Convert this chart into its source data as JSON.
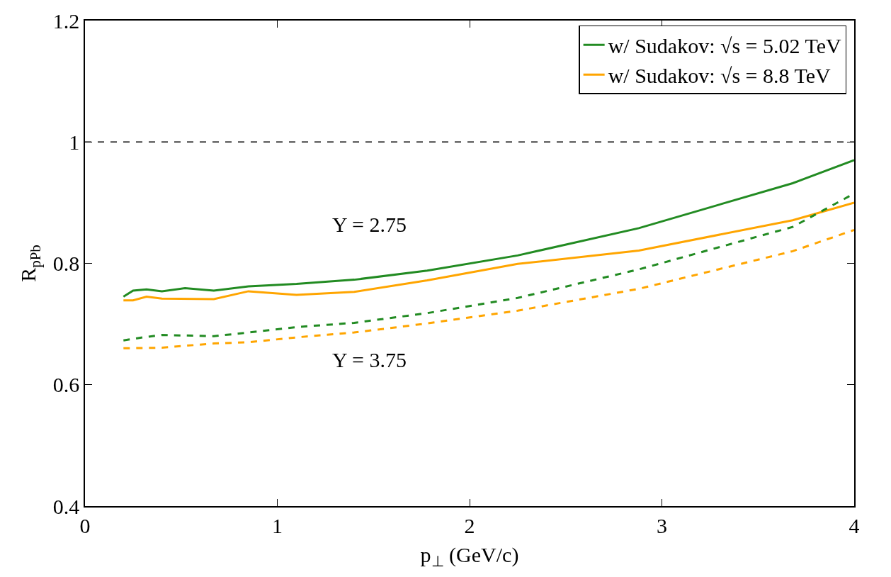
{
  "chart_data": {
    "type": "line",
    "xlabel": "p$_{⊥}$ (GeV/c)",
    "ylabel": "R$_{pPb}$",
    "xlim": [
      0,
      4
    ],
    "xticks": [
      0,
      1,
      2,
      3,
      4
    ],
    "ylim": [
      0.4,
      1.2
    ],
    "yticks": [
      0.4,
      0.6,
      0.8,
      1,
      1.2
    ],
    "grid": false,
    "legend": "top right",
    "marker": "none",
    "series": [
      {
        "name": "w/ Sudakov: √s = 5.02 TeV",
        "color": "#228b22",
        "line_style": "solid",
        "x": [
          0.2,
          0.25,
          0.32,
          0.4,
          0.52,
          0.67,
          0.85,
          1.1,
          1.4,
          1.78,
          2.25,
          2.88,
          3.68,
          4
        ],
        "values": [
          0.745,
          0.755,
          0.757,
          0.754,
          0.759,
          0.755,
          0.762,
          0.766,
          0.773,
          0.788,
          0.813,
          0.858,
          0.932,
          0.97
        ]
      },
      {
        "name": "w/ Sudakov: √s = 8.8 TeV",
        "color": "#ffa500",
        "line_style": "solid",
        "x": [
          0.2,
          0.25,
          0.32,
          0.4,
          0.67,
          0.85,
          1.1,
          1.4,
          1.78,
          2.25,
          2.88,
          3.68,
          4
        ],
        "values": [
          0.739,
          0.739,
          0.745,
          0.742,
          0.741,
          0.754,
          0.748,
          0.753,
          0.772,
          0.799,
          0.821,
          0.871,
          0.9
        ]
      },
      {
        "color": "#228b22",
        "line_style": "dashed",
        "x": [
          0.2,
          0.3,
          0.4,
          0.67,
          0.85,
          1.1,
          1.4,
          1.78,
          2.25,
          2.88,
          3.68,
          4
        ],
        "values": [
          0.673,
          0.678,
          0.682,
          0.68,
          0.686,
          0.695,
          0.702,
          0.718,
          0.743,
          0.79,
          0.86,
          0.915
        ]
      },
      {
        "color": "#ffa500",
        "line_style": "dashed",
        "x": [
          0.2,
          0.4,
          0.67,
          0.85,
          1.1,
          1.4,
          1.78,
          2.25,
          2.88,
          3.68,
          4
        ],
        "values": [
          0.66,
          0.661,
          0.668,
          0.67,
          0.678,
          0.686,
          0.701,
          0.722,
          0.758,
          0.82,
          0.855
        ]
      }
    ],
    "ref_lines": [
      {
        "axis": "y",
        "value": 1,
        "color": "#000000",
        "line_style": "dashed"
      }
    ],
    "annotations": [
      "Y = 2.75",
      "Y = 3.75"
    ]
  }
}
